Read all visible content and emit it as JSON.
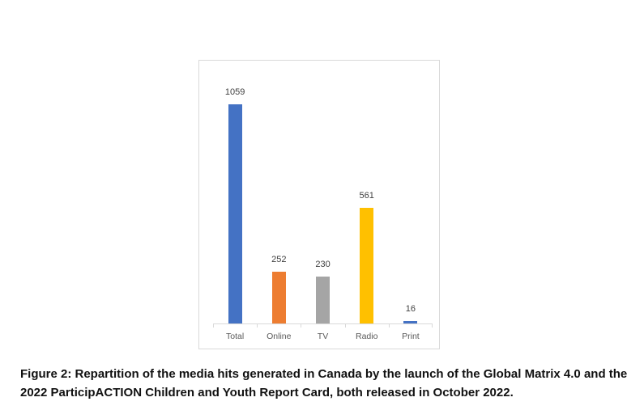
{
  "figure": {
    "caption": "Figure 2: Repartition of the media hits generated in Canada by the launch of the Global Matrix 4.0 and the 2022 ParticipACTION Children and Youth Report Card, both released in October 2022."
  },
  "chart_data": {
    "type": "bar",
    "categories": [
      "Total",
      "Online",
      "TV",
      "Radio",
      "Print"
    ],
    "values": [
      1059,
      252,
      230,
      561,
      16
    ],
    "bar_colors": [
      "#4472C4",
      "#ED7D31",
      "#A5A5A5",
      "#FFC000",
      "#4472C4"
    ],
    "title": "",
    "xlabel": "",
    "ylabel": "",
    "ylim": [
      0,
      1100
    ],
    "grid": false,
    "legend": false,
    "data_labels": true,
    "axis_line_color": "#D9D9D9",
    "value_label_color": "#404040",
    "category_label_color": "#595959",
    "plot_background": "#FFFFFF",
    "border_color": "#D9D9D9"
  }
}
